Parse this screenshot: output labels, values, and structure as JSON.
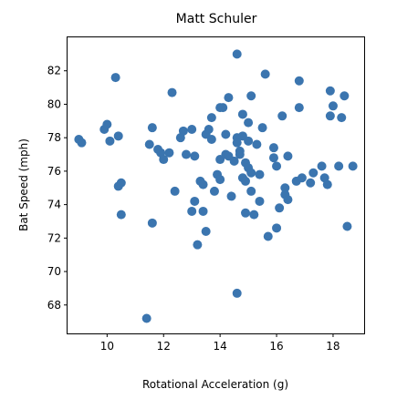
{
  "chart_data": {
    "type": "scatter",
    "title": "Matt Schuler",
    "xlabel": "Rotational Acceleration (g)",
    "ylabel": "Bat Speed (mph)",
    "xlim": [
      8.6,
      19.1
    ],
    "ylim": [
      66.3,
      84.0
    ],
    "xticks": [
      10,
      12,
      14,
      16,
      18
    ],
    "yticks": [
      68,
      70,
      72,
      74,
      76,
      78,
      80,
      82
    ],
    "grid": false,
    "marker_color": "#3b75af",
    "points": [
      [
        9.0,
        77.9
      ],
      [
        9.1,
        77.7
      ],
      [
        9.9,
        78.5
      ],
      [
        10.0,
        78.8
      ],
      [
        10.1,
        77.8
      ],
      [
        10.3,
        81.6
      ],
      [
        10.4,
        78.1
      ],
      [
        10.4,
        75.1
      ],
      [
        10.5,
        75.3
      ],
      [
        10.5,
        73.4
      ],
      [
        11.4,
        67.2
      ],
      [
        11.5,
        77.6
      ],
      [
        11.6,
        78.6
      ],
      [
        11.6,
        72.9
      ],
      [
        11.8,
        77.3
      ],
      [
        11.9,
        77.1
      ],
      [
        12.0,
        76.7
      ],
      [
        12.2,
        77.1
      ],
      [
        12.3,
        80.7
      ],
      [
        12.4,
        74.8
      ],
      [
        12.6,
        78.0
      ],
      [
        12.7,
        78.4
      ],
      [
        12.8,
        77.0
      ],
      [
        13.0,
        78.5
      ],
      [
        13.0,
        73.6
      ],
      [
        13.1,
        76.9
      ],
      [
        13.1,
        74.2
      ],
      [
        13.2,
        71.6
      ],
      [
        13.3,
        75.4
      ],
      [
        13.4,
        75.2
      ],
      [
        13.4,
        73.6
      ],
      [
        13.5,
        78.2
      ],
      [
        13.5,
        72.4
      ],
      [
        13.6,
        78.5
      ],
      [
        13.7,
        79.2
      ],
      [
        13.7,
        77.9
      ],
      [
        13.8,
        74.8
      ],
      [
        13.9,
        75.8
      ],
      [
        14.0,
        79.8
      ],
      [
        14.0,
        76.7
      ],
      [
        14.0,
        75.5
      ],
      [
        14.1,
        79.8
      ],
      [
        14.2,
        78.2
      ],
      [
        14.2,
        77.0
      ],
      [
        14.3,
        80.4
      ],
      [
        14.3,
        76.9
      ],
      [
        14.4,
        74.5
      ],
      [
        14.5,
        76.6
      ],
      [
        14.6,
        78.0
      ],
      [
        14.6,
        77.7
      ],
      [
        14.6,
        68.7
      ],
      [
        14.6,
        83.0
      ],
      [
        14.7,
        77.2
      ],
      [
        14.7,
        77.0
      ],
      [
        14.8,
        79.4
      ],
      [
        14.8,
        78.1
      ],
      [
        14.8,
        75.6
      ],
      [
        14.9,
        76.5
      ],
      [
        14.9,
        75.4
      ],
      [
        14.9,
        73.5
      ],
      [
        15.0,
        78.9
      ],
      [
        15.0,
        77.8
      ],
      [
        15.0,
        76.2
      ],
      [
        15.1,
        80.5
      ],
      [
        15.1,
        75.9
      ],
      [
        15.1,
        74.8
      ],
      [
        15.2,
        73.4
      ],
      [
        15.3,
        77.6
      ],
      [
        15.4,
        75.8
      ],
      [
        15.4,
        74.2
      ],
      [
        15.5,
        78.6
      ],
      [
        15.6,
        81.8
      ],
      [
        15.7,
        72.1
      ],
      [
        15.9,
        77.4
      ],
      [
        15.9,
        76.8
      ],
      [
        16.0,
        76.3
      ],
      [
        16.0,
        72.6
      ],
      [
        16.1,
        73.8
      ],
      [
        16.2,
        79.3
      ],
      [
        16.3,
        75.0
      ],
      [
        16.3,
        74.6
      ],
      [
        16.4,
        76.9
      ],
      [
        16.4,
        74.3
      ],
      [
        16.7,
        75.4
      ],
      [
        16.8,
        81.4
      ],
      [
        16.8,
        79.8
      ],
      [
        16.9,
        75.6
      ],
      [
        17.2,
        75.3
      ],
      [
        17.3,
        75.9
      ],
      [
        17.6,
        76.3
      ],
      [
        17.7,
        75.6
      ],
      [
        17.8,
        75.2
      ],
      [
        17.9,
        80.8
      ],
      [
        17.9,
        79.3
      ],
      [
        18.0,
        79.9
      ],
      [
        18.2,
        76.3
      ],
      [
        18.3,
        79.2
      ],
      [
        18.4,
        80.5
      ],
      [
        18.5,
        72.7
      ],
      [
        18.7,
        76.3
      ]
    ]
  }
}
